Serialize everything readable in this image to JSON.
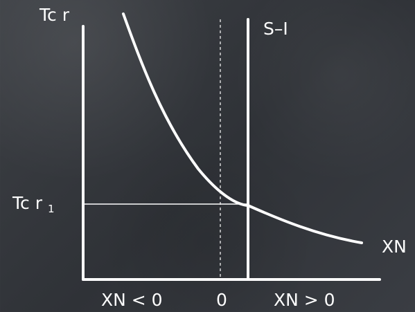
{
  "labels": {
    "y_axis_main": "Tc r",
    "y_axis_sub_main": "Tc r",
    "y_axis_sub_index": "1",
    "s_i": "S–I",
    "xn": "XN",
    "left_region": "XN < 0",
    "origin": "0",
    "right_region": "XN > 0"
  },
  "colors": {
    "background": "#34373c",
    "ink": "#ffffff"
  }
}
